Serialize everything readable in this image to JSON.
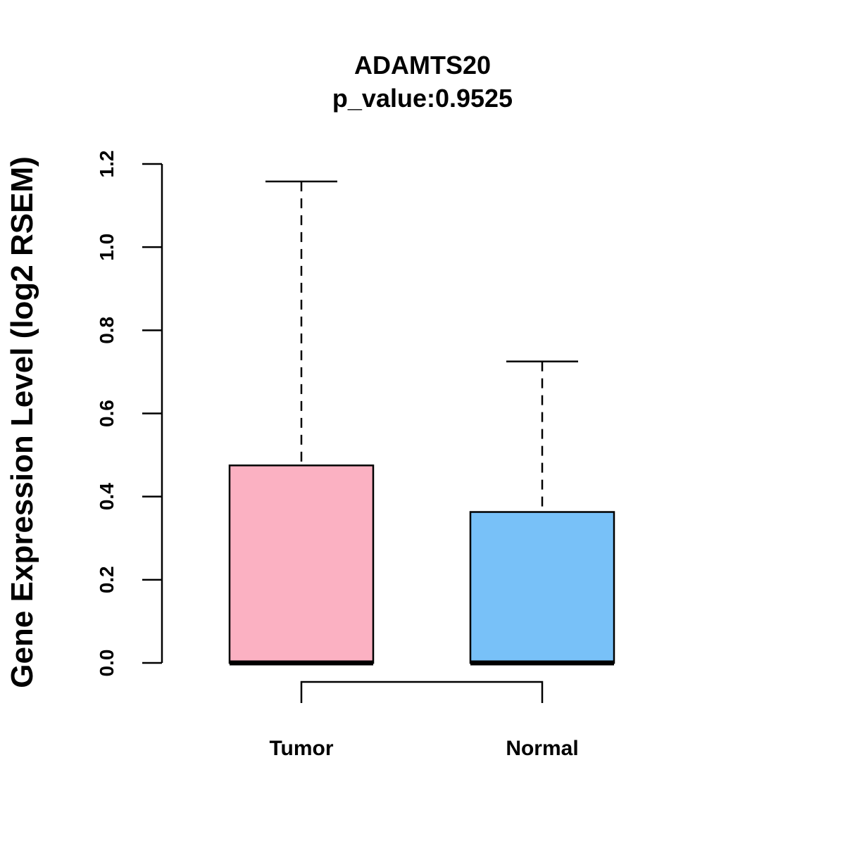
{
  "chart_data": {
    "type": "boxplot",
    "title": "ADAMTS20",
    "subtitle": "p_value:0.9525",
    "xlabel": "",
    "ylabel": "Gene Expression Level (log2 RSEM)",
    "ylim": [
      0,
      1.2
    ],
    "yticks": [
      "0.0",
      "0.2",
      "0.4",
      "0.6",
      "0.8",
      "1.0",
      "1.2"
    ],
    "grid": false,
    "legend": "none",
    "categories": [
      "Tumor",
      "Normal"
    ],
    "series": [
      {
        "name": "Tumor",
        "min": 0.0,
        "q1": 0.0,
        "median": 0.0,
        "q3": 0.475,
        "max": 1.158,
        "color": "#FBB1C2"
      },
      {
        "name": "Normal",
        "min": 0.0,
        "q1": 0.0,
        "median": 0.0,
        "q3": 0.363,
        "max": 0.725,
        "color": "#78C1F8"
      }
    ],
    "comparison_bracket": [
      "Tumor",
      "Normal"
    ]
  }
}
